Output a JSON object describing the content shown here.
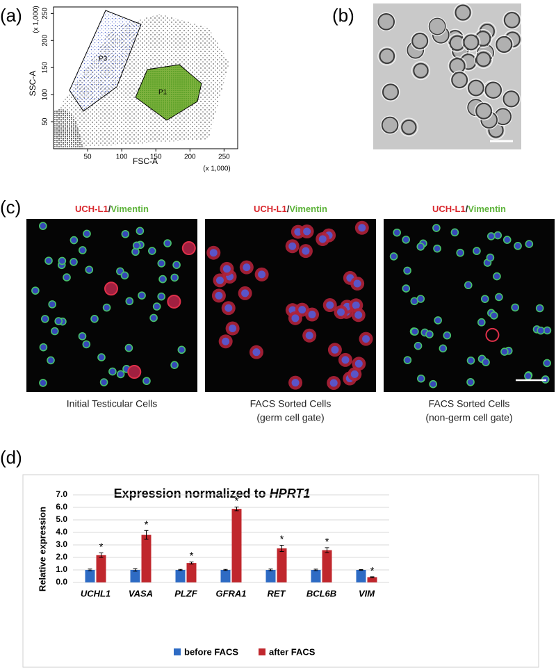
{
  "panel_labels": [
    "(a)",
    "(b)",
    "(c)",
    "(d)"
  ],
  "flow_plot": {
    "x_label": "FSC-A",
    "y_label": "SSC-A",
    "x_scale_note": "(x 1,000)",
    "y_scale_note": "(x 1,000)",
    "xlim": [
      0,
      270
    ],
    "ylim": [
      0,
      262
    ],
    "xticks": [
      50,
      100,
      150,
      200,
      250
    ],
    "yticks": [
      50,
      100,
      150,
      200,
      250
    ],
    "gates": [
      "P3",
      "P1"
    ]
  },
  "stain_title": {
    "marker_red": "UCH-L1",
    "separator": "/",
    "marker_green": "Vimentin"
  },
  "image_captions": [
    [
      "Initial Testicular Cells"
    ],
    [
      "FACS Sorted Cells",
      "(germ cell gate)"
    ],
    [
      "FACS Sorted Cells",
      "(non-germ cell gate)"
    ]
  ],
  "chart_data": {
    "type": "bar",
    "title": "Expression normalized to",
    "title_gene": "HPRT1",
    "y_label": "Relative expression",
    "categories": [
      "UCHL1",
      "VASA",
      "PLZF",
      "GFRA1",
      "RET",
      "BCL6B",
      "VIM"
    ],
    "series": [
      {
        "name": "before FACS",
        "color": "#2e6bc4",
        "values": [
          1.0,
          1.0,
          1.0,
          1.0,
          1.0,
          1.0,
          1.0
        ],
        "errors": [
          0.07,
          0.1,
          0.04,
          0.04,
          0.07,
          0.06,
          0.03
        ]
      },
      {
        "name": "after FACS",
        "color": "#c0272d",
        "values": [
          2.18,
          3.8,
          1.55,
          5.88,
          2.72,
          2.58,
          0.42
        ],
        "errors": [
          0.18,
          0.35,
          0.08,
          0.15,
          0.25,
          0.2,
          0.03
        ],
        "annotations": [
          "*",
          "*",
          "*",
          "*",
          "*",
          "*",
          "*"
        ]
      }
    ],
    "ylim": [
      0,
      7
    ],
    "yticks": [
      {
        "value": 0,
        "label": "0.0"
      },
      {
        "value": 1,
        "label": "1.0"
      },
      {
        "value": 2,
        "label": "2.0"
      },
      {
        "value": 3,
        "label": "3.0"
      },
      {
        "value": 4,
        "label": "4.0"
      },
      {
        "value": 5,
        "label": "5.0"
      },
      {
        "value": 6,
        "label": "6.0"
      },
      {
        "value": 7,
        "label": "7.0"
      }
    ],
    "grid": true,
    "legend": "bottom"
  }
}
